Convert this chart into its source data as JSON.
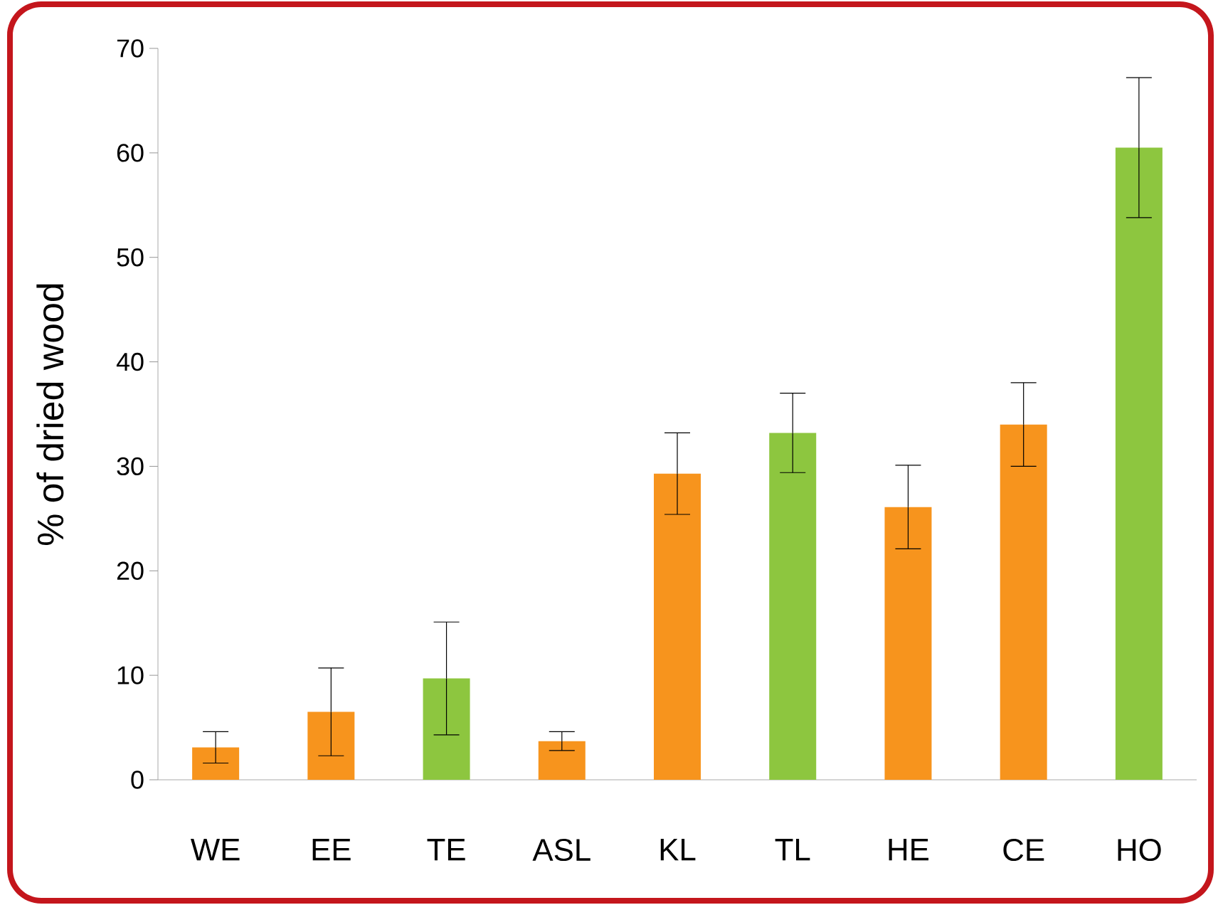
{
  "chart_data": {
    "type": "bar",
    "ylabel": "%  of dried wood",
    "categories": [
      "WE",
      "EE",
      "TE",
      "ASL",
      "KL",
      "TL",
      "HE",
      "CE",
      "HO"
    ],
    "values": [
      3.1,
      6.5,
      9.7,
      3.7,
      29.3,
      33.2,
      26.1,
      34.0,
      60.5
    ],
    "errors": [
      1.5,
      4.2,
      5.4,
      0.9,
      3.9,
      3.8,
      4.0,
      4.0,
      6.7
    ],
    "colors": [
      "#f7941d",
      "#f7941d",
      "#8dc63f",
      "#f7941d",
      "#f7941d",
      "#8dc63f",
      "#f7941d",
      "#f7941d",
      "#8dc63f"
    ],
    "ylim": [
      0,
      70
    ],
    "yticks": [
      0,
      10,
      20,
      30,
      40,
      50,
      60,
      70
    ],
    "grid": false
  }
}
